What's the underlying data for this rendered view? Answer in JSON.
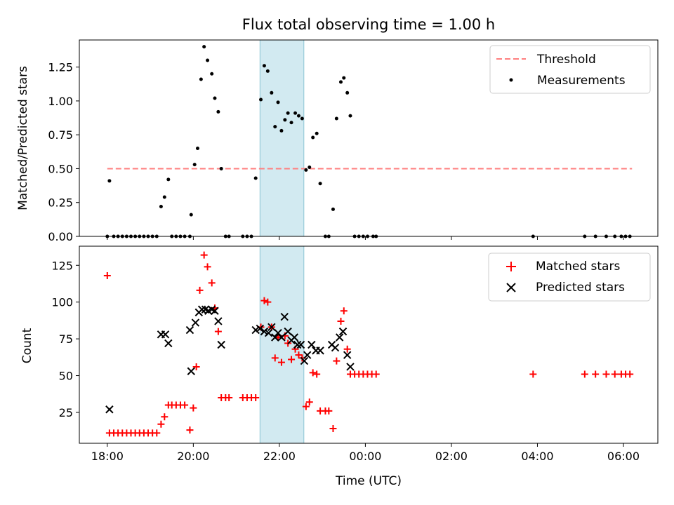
{
  "chart_data": [
    {
      "type": "scatter",
      "title": "Flux total observing time = 1.00 h",
      "ylabel": "Matched/Predicted stars",
      "xlabel": "",
      "x_unit": "hours since 18:00 UTC",
      "xlim": [
        -0.65,
        12.8
      ],
      "ylim": [
        0,
        1.45
      ],
      "x_ticks": [
        0,
        2,
        4,
        6,
        8,
        10,
        12
      ],
      "y_ticks": [
        0.0,
        0.25,
        0.5,
        0.75,
        1.0,
        1.25
      ],
      "y_tick_labels": [
        "0.00",
        "0.25",
        "0.50",
        "0.75",
        "1.00",
        "1.25"
      ],
      "highlight_span": [
        3.55,
        4.57
      ],
      "legend_position": "top-right",
      "threshold": {
        "name": "Threshold",
        "value": 0.5,
        "x_range": [
          0,
          12.2
        ],
        "color": "#ff7f7f"
      },
      "series": [
        {
          "name": "Measurements",
          "color": "#000000",
          "points": [
            [
              0.0,
              0.0
            ],
            [
              0.05,
              0.41
            ],
            [
              0.15,
              0.0
            ],
            [
              0.25,
              0.0
            ],
            [
              0.35,
              0.0
            ],
            [
              0.45,
              0.0
            ],
            [
              0.55,
              0.0
            ],
            [
              0.65,
              0.0
            ],
            [
              0.75,
              0.0
            ],
            [
              0.85,
              0.0
            ],
            [
              0.95,
              0.0
            ],
            [
              1.05,
              0.0
            ],
            [
              1.15,
              0.0
            ],
            [
              1.25,
              0.22
            ],
            [
              1.33,
              0.29
            ],
            [
              1.42,
              0.42
            ],
            [
              1.5,
              0.0
            ],
            [
              1.6,
              0.0
            ],
            [
              1.7,
              0.0
            ],
            [
              1.8,
              0.0
            ],
            [
              1.92,
              0.0
            ],
            [
              1.95,
              0.16
            ],
            [
              2.03,
              0.53
            ],
            [
              2.1,
              0.65
            ],
            [
              2.18,
              1.16
            ],
            [
              2.25,
              1.4
            ],
            [
              2.33,
              1.3
            ],
            [
              2.43,
              1.2
            ],
            [
              2.5,
              1.02
            ],
            [
              2.58,
              0.92
            ],
            [
              2.65,
              0.5
            ],
            [
              2.75,
              0.0
            ],
            [
              2.83,
              0.0
            ],
            [
              3.15,
              0.0
            ],
            [
              3.25,
              0.0
            ],
            [
              3.35,
              0.0
            ],
            [
              3.45,
              0.43
            ],
            [
              3.57,
              1.01
            ],
            [
              3.65,
              1.26
            ],
            [
              3.73,
              1.22
            ],
            [
              3.82,
              1.06
            ],
            [
              3.9,
              0.81
            ],
            [
              3.97,
              0.99
            ],
            [
              4.05,
              0.78
            ],
            [
              4.13,
              0.86
            ],
            [
              4.2,
              0.91
            ],
            [
              4.28,
              0.84
            ],
            [
              4.37,
              0.91
            ],
            [
              4.45,
              0.89
            ],
            [
              4.53,
              0.87
            ],
            [
              4.62,
              0.49
            ],
            [
              4.7,
              0.51
            ],
            [
              4.78,
              0.73
            ],
            [
              4.87,
              0.76
            ],
            [
              4.95,
              0.39
            ],
            [
              5.07,
              0.0
            ],
            [
              5.15,
              0.0
            ],
            [
              5.25,
              0.2
            ],
            [
              5.33,
              0.87
            ],
            [
              5.43,
              1.14
            ],
            [
              5.5,
              1.17
            ],
            [
              5.58,
              1.06
            ],
            [
              5.65,
              0.89
            ],
            [
              5.75,
              0.0
            ],
            [
              5.85,
              0.0
            ],
            [
              5.95,
              0.0
            ],
            [
              6.05,
              0.0
            ],
            [
              6.18,
              0.0
            ],
            [
              6.25,
              0.0
            ],
            [
              9.9,
              0.0
            ],
            [
              11.1,
              0.0
            ],
            [
              11.35,
              0.0
            ],
            [
              11.6,
              0.0
            ],
            [
              11.8,
              0.0
            ],
            [
              11.95,
              0.0
            ],
            [
              12.05,
              0.0
            ],
            [
              12.15,
              0.0
            ]
          ]
        }
      ]
    },
    {
      "type": "scatter",
      "title": "",
      "ylabel": "Count",
      "xlabel": "Time (UTC)",
      "x_unit": "hours since 18:00 UTC",
      "xlim": [
        -0.65,
        12.8
      ],
      "ylim": [
        4,
        138
      ],
      "x_ticks": [
        0,
        2,
        4,
        6,
        8,
        10,
        12
      ],
      "x_tick_labels": [
        "18:00",
        "20:00",
        "22:00",
        "00:00",
        "02:00",
        "04:00",
        "06:00"
      ],
      "y_ticks": [
        25,
        50,
        75,
        100,
        125
      ],
      "y_tick_labels": [
        "25",
        "50",
        "75",
        "100",
        "125"
      ],
      "highlight_span": [
        3.55,
        4.57
      ],
      "legend_position": "top-right",
      "series": [
        {
          "name": "Matched stars",
          "marker": "plus",
          "color": "#ff0000",
          "points": [
            [
              0.0,
              118
            ],
            [
              0.05,
              11
            ],
            [
              0.15,
              11
            ],
            [
              0.25,
              11
            ],
            [
              0.35,
              11
            ],
            [
              0.45,
              11
            ],
            [
              0.55,
              11
            ],
            [
              0.65,
              11
            ],
            [
              0.75,
              11
            ],
            [
              0.85,
              11
            ],
            [
              0.95,
              11
            ],
            [
              1.05,
              11
            ],
            [
              1.15,
              11
            ],
            [
              1.25,
              17
            ],
            [
              1.33,
              22
            ],
            [
              1.42,
              30
            ],
            [
              1.5,
              30
            ],
            [
              1.6,
              30
            ],
            [
              1.7,
              30
            ],
            [
              1.8,
              30
            ],
            [
              1.92,
              13
            ],
            [
              2.0,
              28
            ],
            [
              2.07,
              56
            ],
            [
              2.15,
              108
            ],
            [
              2.25,
              132
            ],
            [
              2.33,
              124
            ],
            [
              2.43,
              113
            ],
            [
              2.5,
              96
            ],
            [
              2.58,
              80
            ],
            [
              2.65,
              35
            ],
            [
              2.75,
              35
            ],
            [
              2.83,
              35
            ],
            [
              3.15,
              35
            ],
            [
              3.25,
              35
            ],
            [
              3.35,
              35
            ],
            [
              3.45,
              35
            ],
            [
              3.57,
              83
            ],
            [
              3.65,
              101
            ],
            [
              3.73,
              100
            ],
            [
              3.82,
              83
            ],
            [
              3.9,
              62
            ],
            [
              3.97,
              76
            ],
            [
              4.05,
              59
            ],
            [
              4.13,
              77
            ],
            [
              4.2,
              72
            ],
            [
              4.28,
              61
            ],
            [
              4.37,
              68
            ],
            [
              4.45,
              64
            ],
            [
              4.53,
              62
            ],
            [
              4.62,
              29
            ],
            [
              4.7,
              32
            ],
            [
              4.78,
              52
            ],
            [
              4.87,
              51
            ],
            [
              4.95,
              26
            ],
            [
              5.07,
              26
            ],
            [
              5.15,
              26
            ],
            [
              5.25,
              14
            ],
            [
              5.33,
              60
            ],
            [
              5.43,
              87
            ],
            [
              5.5,
              94
            ],
            [
              5.58,
              68
            ],
            [
              5.65,
              51
            ],
            [
              5.75,
              51
            ],
            [
              5.85,
              51
            ],
            [
              5.95,
              51
            ],
            [
              6.05,
              51
            ],
            [
              6.15,
              51
            ],
            [
              6.25,
              51
            ],
            [
              9.9,
              51
            ],
            [
              11.1,
              51
            ],
            [
              11.35,
              51
            ],
            [
              11.6,
              51
            ],
            [
              11.8,
              51
            ],
            [
              11.95,
              51
            ],
            [
              12.05,
              51
            ],
            [
              12.15,
              51
            ]
          ]
        },
        {
          "name": "Predicted stars",
          "marker": "x",
          "color": "#000000",
          "points": [
            [
              0.05,
              27
            ],
            [
              1.25,
              78
            ],
            [
              1.35,
              78
            ],
            [
              1.42,
              72
            ],
            [
              1.92,
              81
            ],
            [
              1.95,
              53
            ],
            [
              2.05,
              86
            ],
            [
              2.13,
              93
            ],
            [
              2.2,
              95
            ],
            [
              2.28,
              95
            ],
            [
              2.35,
              94
            ],
            [
              2.43,
              95
            ],
            [
              2.5,
              94
            ],
            [
              2.58,
              87
            ],
            [
              2.65,
              71
            ],
            [
              3.45,
              81
            ],
            [
              3.55,
              82
            ],
            [
              3.65,
              80
            ],
            [
              3.75,
              79
            ],
            [
              3.82,
              83
            ],
            [
              3.9,
              76
            ],
            [
              3.97,
              79
            ],
            [
              4.05,
              76
            ],
            [
              4.12,
              90
            ],
            [
              4.2,
              80
            ],
            [
              4.28,
              74
            ],
            [
              4.35,
              76
            ],
            [
              4.42,
              71
            ],
            [
              4.5,
              71
            ],
            [
              4.58,
              60
            ],
            [
              4.65,
              64
            ],
            [
              4.75,
              71
            ],
            [
              4.85,
              67
            ],
            [
              4.95,
              67
            ],
            [
              5.22,
              71
            ],
            [
              5.3,
              69
            ],
            [
              5.4,
              76
            ],
            [
              5.48,
              80
            ],
            [
              5.58,
              64
            ],
            [
              5.65,
              56
            ]
          ]
        }
      ]
    }
  ]
}
